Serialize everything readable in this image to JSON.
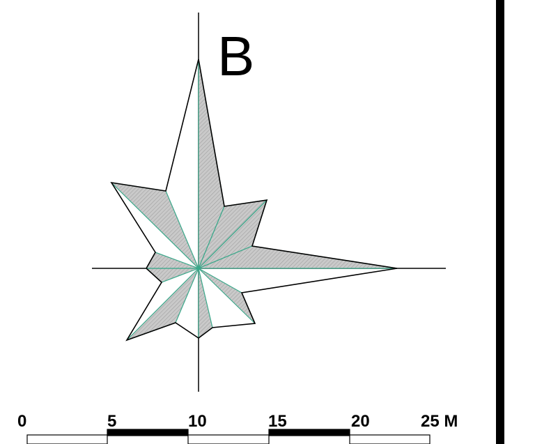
{
  "panel_label": "B",
  "scale_bar": {
    "ticks": [
      "0",
      "5",
      "10",
      "15",
      "20",
      "25 M"
    ]
  },
  "colors": {
    "fill": "#bdbdbd",
    "outline": "#000000",
    "ray": "#3aa88a",
    "background": "#ffffff"
  }
}
